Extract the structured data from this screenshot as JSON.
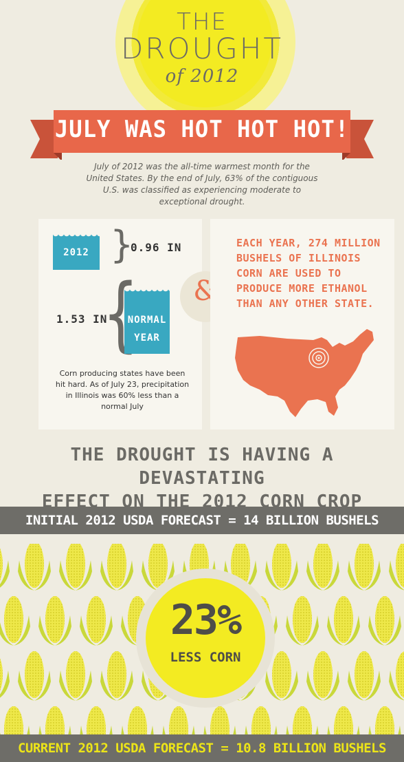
{
  "header": {
    "title_line1": "THE",
    "title_line2": "DROUGHT",
    "title_line3": "of 2012"
  },
  "ribbon": {
    "text": "JULY WAS HOT HOT HOT!"
  },
  "intro": {
    "text": "July of 2012 was the all-time warmest month for the United States. By the end of July, 63% of the contiguous U.S. was classified as experiencing moderate to exceptional drought."
  },
  "precipitation": {
    "year_label": "2012",
    "year_value": "0.96 IN",
    "normal_label_line1": "NORMAL",
    "normal_label_line2": "YEAR",
    "normal_value": "1.53 IN",
    "note": "Corn producing states have been hit hard. As of July 23, precipitation in Illinois was 60% less than a normal July"
  },
  "ampersand": "&",
  "illinois": {
    "text": "EACH YEAR, 274 MILLION BUSHELS OF ILLINOIS CORN ARE USED TO PRODUCE MORE ETHANOL THAN ANY OTHER STATE."
  },
  "headline": {
    "line1": "THE DROUGHT IS HAVING A DEVASTATING",
    "line2": "EFFECT ON THE 2012 CORN CROP"
  },
  "forecast": {
    "initial": "INITIAL 2012 USDA FORECAST = 14 BILLION BUSHELS",
    "current": "CURRENT 2012 USDA FORECAST = 10.8 BILLION BUSHELS"
  },
  "reduction": {
    "percent": "23%",
    "label": "LESS CORN"
  },
  "colors": {
    "background": "#efece1",
    "sun": "#f3eb22",
    "ribbon": "#e8674a",
    "teal": "#39a8c1",
    "orange_text": "#ea7350",
    "gray_bar": "#6e6d68",
    "corn_green": "#c9d83a",
    "corn_yellow": "#eee84a"
  }
}
